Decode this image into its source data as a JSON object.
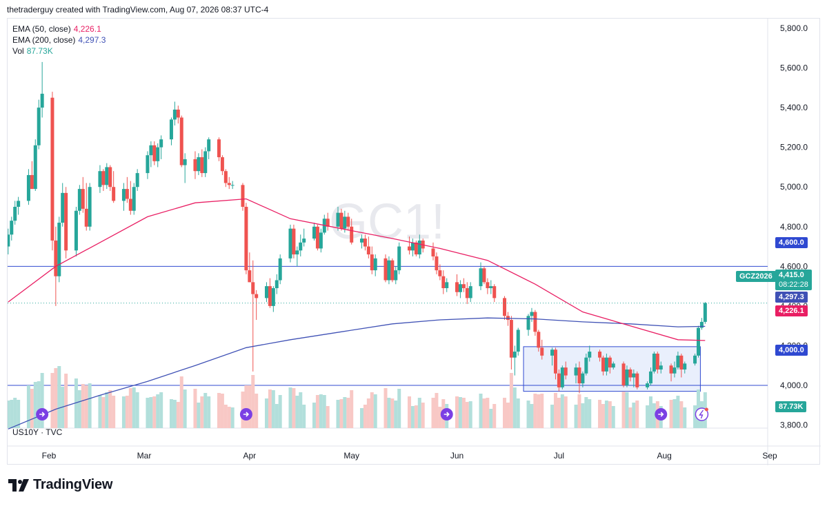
{
  "header": {
    "credit": "thetraderguy created with TradingView.com, Aug 07, 2026 08:37 UTC-4"
  },
  "legend": {
    "ema50": {
      "label": "EMA (50, close)",
      "value": "4,226.1"
    },
    "ema200": {
      "label": "EMA (200, close)",
      "value": "4,297.3"
    },
    "vol": {
      "label": "Vol",
      "value": "87.73K"
    }
  },
  "watermark": "GC1!",
  "sub_pane_label": "US10Y · TVC",
  "price_tags": {
    "symbol": "GCZ2026",
    "last": "4,415.0",
    "countdown": "08:22:28",
    "ema200": "4,297.3",
    "ema50": "4,226.1",
    "hline_upper": "4,600.0",
    "hline_lower": "4,000.0",
    "volume": "87.73K"
  },
  "footer": {
    "brand": "TradingView"
  },
  "colors": {
    "up": "#26a69a",
    "down": "#ef5350",
    "ema50": "#e91e63",
    "ema200": "#3f51b5",
    "hline": "#2f49d1",
    "box_fill": "#dfe8fb",
    "box_stroke": "#2f49d1",
    "vol_up": "#b2dfdb",
    "vol_down": "#f8c8c5"
  },
  "chart_data": {
    "type": "candlestick",
    "y_ticks": [
      "5,800.0",
      "5,600.0",
      "5,400.0",
      "5,200.0",
      "5,000.0",
      "4,800.0",
      "4,600.0",
      "4,400.0",
      "4,200.0",
      "4,000.0",
      "3,800.0"
    ],
    "y_tick_values": [
      5800,
      5600,
      5400,
      5200,
      5000,
      4800,
      4600,
      4400,
      4200,
      4000,
      3800
    ],
    "x_ticks": [
      "Feb",
      "Mar",
      "Apr",
      "May",
      "Jun",
      "Jul",
      "Aug",
      "Sep"
    ],
    "x_tick_dates": [
      "2026-02-01",
      "2026-03-01",
      "2026-04-01",
      "2026-05-01",
      "2026-06-01",
      "2026-07-01",
      "2026-08-01",
      "2026-09-01"
    ],
    "ylim": [
      3780,
      5880
    ],
    "horizontal_lines": [
      4600,
      4000
    ],
    "range_box": {
      "start": "2026-06-22",
      "end": "2026-08-12",
      "low": 3970,
      "high": 4195
    },
    "price_series": [
      [
        "2026-01-20",
        4700,
        4790,
        4660,
        4760
      ],
      [
        "2026-01-21",
        4760,
        4850,
        4730,
        4830
      ],
      [
        "2026-01-22",
        4830,
        4930,
        4810,
        4900
      ],
      [
        "2026-01-23",
        4900,
        4950,
        4860,
        4930
      ],
      [
        "2026-01-26",
        4930,
        5090,
        4910,
        5060
      ],
      [
        "2026-01-27",
        5060,
        5130,
        4990,
        4990
      ],
      [
        "2026-01-28",
        4990,
        5240,
        4980,
        5210
      ],
      [
        "2026-01-29",
        5210,
        5440,
        5190,
        5400
      ],
      [
        "2026-01-30",
        5400,
        5630,
        5350,
        5470
      ],
      [
        "2026-02-02",
        5450,
        5480,
        4680,
        4730
      ],
      [
        "2026-02-03",
        4730,
        4800,
        4400,
        4550
      ],
      [
        "2026-02-04",
        4550,
        4850,
        4520,
        4820
      ],
      [
        "2026-02-05",
        4820,
        5020,
        4800,
        4970
      ],
      [
        "2026-02-06",
        4970,
        5000,
        4640,
        4680
      ],
      [
        "2026-02-09",
        4680,
        4900,
        4650,
        4880
      ],
      [
        "2026-02-10",
        4880,
        5010,
        4860,
        4990
      ],
      [
        "2026-02-11",
        4990,
        5050,
        4870,
        4890
      ],
      [
        "2026-02-12",
        4890,
        5020,
        4780,
        4800
      ],
      [
        "2026-02-13",
        4800,
        5020,
        4780,
        5000
      ],
      [
        "2026-02-16",
        5000,
        5110,
        4970,
        5080
      ],
      [
        "2026-02-17",
        5080,
        5090,
        4980,
        5010
      ],
      [
        "2026-02-18",
        5010,
        5120,
        4990,
        5100
      ],
      [
        "2026-02-19",
        5100,
        5110,
        4980,
        5000
      ],
      [
        "2026-02-20",
        5000,
        5080,
        4920,
        4930
      ],
      [
        "2026-02-23",
        4930,
        5020,
        4880,
        4990
      ],
      [
        "2026-02-24",
        4990,
        5050,
        4920,
        4940
      ],
      [
        "2026-02-25",
        4940,
        5030,
        4860,
        4880
      ],
      [
        "2026-02-26",
        4880,
        5020,
        4860,
        5000
      ],
      [
        "2026-02-27",
        5000,
        5090,
        4980,
        5070
      ],
      [
        "2026-03-02",
        5070,
        5180,
        5040,
        5160
      ],
      [
        "2026-03-03",
        5160,
        5230,
        5100,
        5210
      ],
      [
        "2026-03-04",
        5210,
        5230,
        5110,
        5130
      ],
      [
        "2026-03-05",
        5130,
        5220,
        5100,
        5200
      ],
      [
        "2026-03-06",
        5200,
        5260,
        5140,
        5240
      ],
      [
        "2026-03-09",
        5240,
        5350,
        5210,
        5340
      ],
      [
        "2026-03-10",
        5340,
        5430,
        5310,
        5390
      ],
      [
        "2026-03-11",
        5390,
        5410,
        5320,
        5350
      ],
      [
        "2026-03-12",
        5350,
        5360,
        5100,
        5110
      ],
      [
        "2026-03-13",
        5110,
        5170,
        5020,
        5140
      ],
      [
        "2026-03-16",
        5140,
        5180,
        5040,
        5080
      ],
      [
        "2026-03-17",
        5080,
        5170,
        5060,
        5150
      ],
      [
        "2026-03-18",
        5150,
        5190,
        5050,
        5070
      ],
      [
        "2026-03-19",
        5070,
        5200,
        5050,
        5180
      ],
      [
        "2026-03-20",
        5180,
        5250,
        5140,
        5240
      ],
      [
        "2026-03-23",
        5240,
        5250,
        5130,
        5150
      ],
      [
        "2026-03-24",
        5150,
        5160,
        5060,
        5080
      ],
      [
        "2026-03-25",
        5080,
        5090,
        5000,
        5020
      ],
      [
        "2026-03-26",
        5020,
        5050,
        4990,
        5010
      ],
      [
        "2026-03-27",
        5010,
        5030,
        4990,
        5010
      ],
      [
        "2026-03-30",
        5010,
        5020,
        4880,
        4900
      ],
      [
        "2026-03-31",
        4900,
        4920,
        4560,
        4580
      ],
      [
        "2026-04-01",
        4580,
        4670,
        4520,
        4520
      ],
      [
        "2026-04-02",
        4520,
        4630,
        4070,
        4460
      ],
      [
        "2026-04-03",
        4460,
        4480,
        4330,
        4440
      ],
      [
        "2026-04-06",
        4440,
        4520,
        4420,
        4500
      ],
      [
        "2026-04-07",
        4500,
        4540,
        4390,
        4400
      ],
      [
        "2026-04-08",
        4400,
        4500,
        4370,
        4490
      ],
      [
        "2026-04-09",
        4490,
        4560,
        4460,
        4530
      ],
      [
        "2026-04-10",
        4530,
        4660,
        4510,
        4640
      ],
      [
        "2026-04-13",
        4640,
        4810,
        4620,
        4790
      ],
      [
        "2026-04-14",
        4790,
        4810,
        4640,
        4660
      ],
      [
        "2026-04-15",
        4660,
        4700,
        4600,
        4680
      ],
      [
        "2026-04-16",
        4680,
        4760,
        4650,
        4720
      ],
      [
        "2026-04-17",
        4720,
        4790,
        4700,
        4740
      ],
      [
        "2026-04-20",
        4740,
        4820,
        4730,
        4800
      ],
      [
        "2026-04-21",
        4800,
        4810,
        4680,
        4690
      ],
      [
        "2026-04-22",
        4690,
        4790,
        4670,
        4770
      ],
      [
        "2026-04-23",
        4770,
        4860,
        4760,
        4840
      ],
      [
        "2026-04-24",
        4840,
        4870,
        4780,
        4800
      ],
      [
        "2026-04-27",
        4800,
        4900,
        4780,
        4870
      ],
      [
        "2026-04-28",
        4870,
        4890,
        4780,
        4790
      ],
      [
        "2026-04-29",
        4790,
        4880,
        4770,
        4850
      ],
      [
        "2026-04-30",
        4850,
        4870,
        4780,
        4800
      ],
      [
        "2026-05-01",
        4800,
        4840,
        4710,
        4720
      ],
      [
        "2026-05-04",
        4720,
        4760,
        4690,
        4740
      ],
      [
        "2026-05-05",
        4740,
        4760,
        4680,
        4700
      ],
      [
        "2026-05-06",
        4700,
        4750,
        4640,
        4660
      ],
      [
        "2026-05-07",
        4660,
        4700,
        4560,
        4580
      ],
      [
        "2026-05-08",
        4580,
        4660,
        4550,
        4640
      ],
      [
        "2026-05-11",
        4640,
        4660,
        4520,
        4530
      ],
      [
        "2026-05-12",
        4530,
        4650,
        4510,
        4630
      ],
      [
        "2026-05-13",
        4630,
        4640,
        4520,
        4530
      ],
      [
        "2026-05-14",
        4530,
        4600,
        4510,
        4580
      ],
      [
        "2026-05-15",
        4580,
        4720,
        4560,
        4700
      ],
      [
        "2026-05-18",
        4700,
        4750,
        4660,
        4680
      ],
      [
        "2026-05-19",
        4680,
        4740,
        4650,
        4720
      ],
      [
        "2026-05-20",
        4720,
        4730,
        4650,
        4660
      ],
      [
        "2026-05-21",
        4660,
        4760,
        4640,
        4730
      ],
      [
        "2026-05-22",
        4730,
        4740,
        4670,
        4690
      ],
      [
        "2026-05-25",
        4690,
        4720,
        4630,
        4650
      ],
      [
        "2026-05-26",
        4650,
        4670,
        4560,
        4580
      ],
      [
        "2026-05-27",
        4580,
        4610,
        4530,
        4550
      ],
      [
        "2026-05-28",
        4550,
        4580,
        4460,
        4490
      ],
      [
        "2026-05-29",
        4490,
        4540,
        4470,
        4520
      ],
      [
        "2026-06-01",
        4520,
        4560,
        4450,
        4470
      ],
      [
        "2026-06-02",
        4470,
        4530,
        4440,
        4510
      ],
      [
        "2026-06-03",
        4510,
        4540,
        4470,
        4490
      ],
      [
        "2026-06-04",
        4490,
        4520,
        4410,
        4440
      ],
      [
        "2026-06-05",
        4440,
        4520,
        4420,
        4500
      ],
      [
        "2026-06-08",
        4500,
        4620,
        4480,
        4590
      ],
      [
        "2026-06-09",
        4590,
        4600,
        4510,
        4520
      ],
      [
        "2026-06-10",
        4520,
        4540,
        4460,
        4490
      ],
      [
        "2026-06-11",
        4490,
        4530,
        4460,
        4500
      ],
      [
        "2026-06-12",
        4500,
        4510,
        4420,
        4440
      ],
      [
        "2026-06-15",
        4440,
        4450,
        4330,
        4350
      ],
      [
        "2026-06-16",
        4350,
        4370,
        4300,
        4330
      ],
      [
        "2026-06-17",
        4330,
        4350,
        4080,
        4140
      ],
      [
        "2026-06-18",
        4140,
        4200,
        4050,
        4170
      ],
      [
        "2026-06-19",
        4170,
        4290,
        4150,
        4280
      ],
      [
        "2026-06-22",
        4280,
        4360,
        4250,
        4350
      ],
      [
        "2026-06-23",
        4350,
        4390,
        4320,
        4370
      ],
      [
        "2026-06-24",
        4370,
        4380,
        4250,
        4270
      ],
      [
        "2026-06-25",
        4270,
        4280,
        4170,
        4190
      ],
      [
        "2026-06-26",
        4190,
        4230,
        4130,
        4150
      ],
      [
        "2026-06-29",
        4150,
        4190,
        4100,
        4180
      ],
      [
        "2026-06-30",
        4180,
        4190,
        4030,
        4060
      ],
      [
        "2026-07-01",
        4060,
        4080,
        3970,
        3990
      ],
      [
        "2026-07-02",
        3990,
        4100,
        3980,
        4090
      ],
      [
        "2026-07-03",
        4090,
        4120,
        4030,
        4050
      ],
      [
        "2026-07-06",
        4050,
        4110,
        4010,
        4090
      ],
      [
        "2026-07-07",
        4090,
        4120,
        3960,
        4010
      ],
      [
        "2026-07-08",
        4010,
        4070,
        3990,
        4060
      ],
      [
        "2026-07-09",
        4060,
        4160,
        4050,
        4140
      ],
      [
        "2026-07-10",
        4140,
        4200,
        4120,
        4170
      ],
      [
        "2026-07-13",
        4170,
        4180,
        4120,
        4140
      ],
      [
        "2026-07-14",
        4140,
        4150,
        4050,
        4070
      ],
      [
        "2026-07-15",
        4070,
        4160,
        4050,
        4140
      ],
      [
        "2026-07-16",
        4140,
        4150,
        4060,
        4090
      ],
      [
        "2026-07-17",
        4090,
        4120,
        4080,
        4110
      ],
      [
        "2026-07-20",
        4110,
        4120,
        3990,
        4000
      ],
      [
        "2026-07-21",
        4000,
        4100,
        3990,
        4080
      ],
      [
        "2026-07-22",
        4080,
        4090,
        4020,
        4040
      ],
      [
        "2026-07-23",
        4040,
        4080,
        3990,
        4060
      ],
      [
        "2026-07-24",
        4060,
        4070,
        3980,
        3990
      ],
      [
        "2026-07-27",
        3990,
        4020,
        3980,
        4010
      ],
      [
        "2026-07-28",
        4010,
        4090,
        4000,
        4070
      ],
      [
        "2026-07-29",
        4070,
        4170,
        4060,
        4160
      ],
      [
        "2026-07-30",
        4160,
        4170,
        4060,
        4080
      ],
      [
        "2026-07-31",
        4080,
        4120,
        4060,
        4100
      ],
      [
        "2026-08-03",
        4100,
        4110,
        4020,
        4060
      ],
      [
        "2026-08-04",
        4060,
        4120,
        4040,
        4090
      ],
      [
        "2026-08-05",
        4090,
        4170,
        4080,
        4150
      ],
      [
        "2026-08-06",
        4150,
        4160,
        4040,
        4080
      ],
      [
        "2026-08-07",
        4080,
        4120,
        4060,
        4110
      ],
      [
        "2026-08-10",
        4110,
        4160,
        4100,
        4150
      ],
      [
        "2026-08-11",
        4150,
        4300,
        4140,
        4290
      ],
      [
        "2026-08-12",
        4290,
        4340,
        4280,
        4320
      ],
      [
        "2026-08-13",
        4320,
        4420,
        4310,
        4415
      ]
    ],
    "ema50_points": [
      [
        "2026-01-20",
        4420
      ],
      [
        "2026-02-03",
        4600
      ],
      [
        "2026-02-16",
        4720
      ],
      [
        "2026-03-02",
        4850
      ],
      [
        "2026-03-16",
        4920
      ],
      [
        "2026-03-31",
        4940
      ],
      [
        "2026-04-13",
        4840
      ],
      [
        "2026-04-28",
        4790
      ],
      [
        "2026-05-13",
        4740
      ],
      [
        "2026-05-27",
        4690
      ],
      [
        "2026-06-10",
        4630
      ],
      [
        "2026-06-24",
        4510
      ],
      [
        "2026-07-08",
        4370
      ],
      [
        "2026-07-22",
        4300
      ],
      [
        "2026-08-05",
        4230
      ],
      [
        "2026-08-13",
        4226.1
      ]
    ],
    "ema200_points": [
      [
        "2026-01-20",
        3780
      ],
      [
        "2026-02-03",
        3880
      ],
      [
        "2026-02-16",
        3950
      ],
      [
        "2026-03-02",
        4020
      ],
      [
        "2026-03-16",
        4100
      ],
      [
        "2026-03-31",
        4190
      ],
      [
        "2026-04-13",
        4230
      ],
      [
        "2026-04-28",
        4270
      ],
      [
        "2026-05-13",
        4310
      ],
      [
        "2026-05-27",
        4330
      ],
      [
        "2026-06-10",
        4340
      ],
      [
        "2026-06-24",
        4335
      ],
      [
        "2026-07-08",
        4320
      ],
      [
        "2026-07-22",
        4310
      ],
      [
        "2026-08-05",
        4295
      ],
      [
        "2026-08-13",
        4297.3
      ]
    ]
  }
}
